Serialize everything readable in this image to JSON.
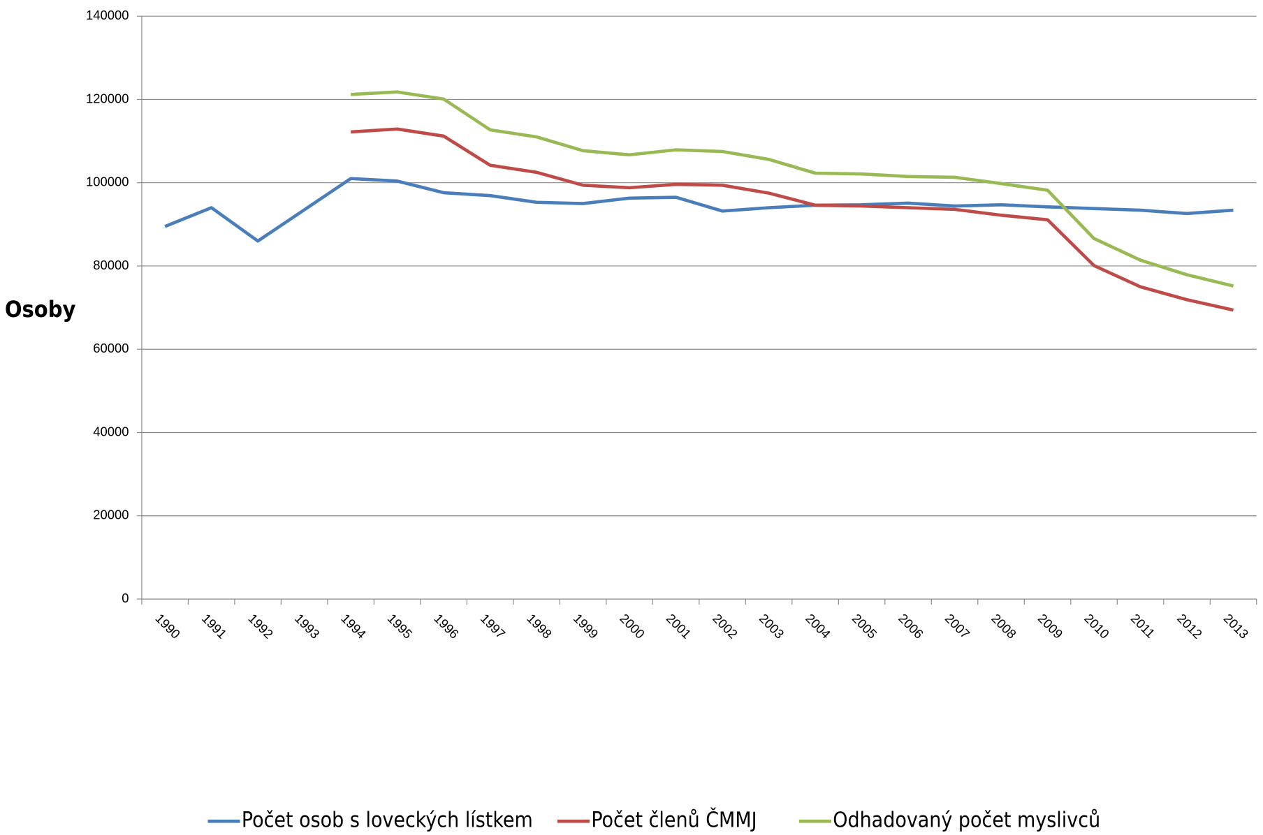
{
  "chart_data": {
    "type": "line",
    "y_label": "Osoby",
    "categories": [
      "1990",
      "1991",
      "1992",
      "1993",
      "1994",
      "1995",
      "1996",
      "1997",
      "1998",
      "1999",
      "2000",
      "2001",
      "2002",
      "2003",
      "2004",
      "2005",
      "2006",
      "2007",
      "2008",
      "2009",
      "2010",
      "2011",
      "2012",
      "2013"
    ],
    "series": [
      {
        "name": "Počet osob s loveckých lístkem",
        "color": "#4a7ebb",
        "values": [
          89500,
          94000,
          86000,
          93500,
          101000,
          100400,
          97600,
          96900,
          95300,
          95000,
          96300,
          96500,
          93200,
          94000,
          94600,
          94700,
          95100,
          94400,
          94700,
          94200,
          93800,
          93400,
          92600,
          93400
        ]
      },
      {
        "name": "Počet členů ČMMJ",
        "color": "#be4b48",
        "values": [
          null,
          null,
          null,
          null,
          112200,
          112900,
          111200,
          104200,
          102500,
          99400,
          98800,
          99600,
          99400,
          97500,
          94600,
          94400,
          94000,
          93600,
          92200,
          91100,
          80100,
          75000,
          71900,
          69400
        ]
      },
      {
        "name": "Odhadovaný počet myslivců",
        "color": "#98b954",
        "values": [
          null,
          null,
          null,
          null,
          121200,
          121800,
          120100,
          112700,
          111000,
          107700,
          106700,
          107900,
          107500,
          105600,
          102300,
          102100,
          101500,
          101300,
          99800,
          98200,
          86600,
          81400,
          77900,
          75200
        ]
      }
    ],
    "ylim": [
      0,
      140000
    ],
    "yticks": [
      0,
      20000,
      40000,
      60000,
      80000,
      100000,
      120000,
      140000
    ],
    "grid": true
  }
}
